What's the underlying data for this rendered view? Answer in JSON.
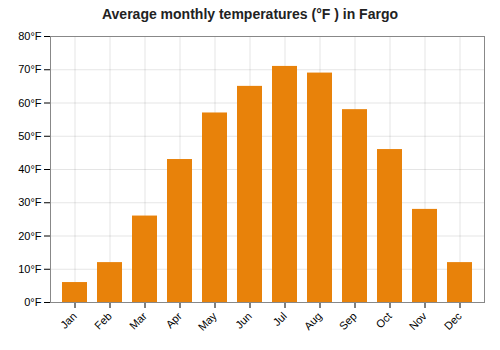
{
  "chart_data": {
    "type": "bar",
    "title": "Average monthly temperatures (°F ) in Fargo",
    "categories": [
      "Jan",
      "Feb",
      "Mar",
      "Apr",
      "May",
      "Jun",
      "Jul",
      "Aug",
      "Sep",
      "Oct",
      "Nov",
      "Dec"
    ],
    "values": [
      6,
      12,
      26,
      43,
      57,
      65,
      71,
      69,
      58,
      46,
      28,
      12
    ],
    "color": "#E8820A",
    "ylim": [
      0,
      80
    ],
    "yticks": [
      {
        "value": 0,
        "label": "0°F"
      },
      {
        "value": 10,
        "label": "10°F"
      },
      {
        "value": 20,
        "label": "20°F"
      },
      {
        "value": 30,
        "label": "30°F"
      },
      {
        "value": 40,
        "label": "40°F"
      },
      {
        "value": 50,
        "label": "50°F"
      },
      {
        "value": 60,
        "label": "60°F"
      },
      {
        "value": 70,
        "label": "70°F"
      },
      {
        "value": 80,
        "label": "80°F"
      }
    ],
    "grid": true
  }
}
